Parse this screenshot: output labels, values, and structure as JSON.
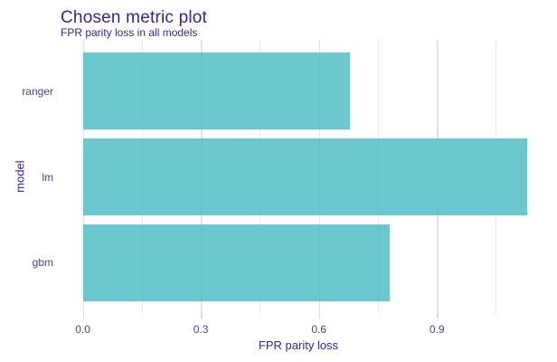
{
  "figure": {
    "title": "Chosen metric plot",
    "subtitle": "FPR parity loss in all models"
  },
  "chart_data": {
    "type": "bar",
    "orientation": "horizontal",
    "title": "Chosen metric plot",
    "subtitle": "FPR parity loss in all models",
    "xlabel": "FPR parity loss",
    "ylabel": "model",
    "categories": [
      "ranger",
      "lm",
      "gbm"
    ],
    "values": [
      0.68,
      1.13,
      0.78
    ],
    "xlim": [
      -0.0565,
      1.1845
    ],
    "x_major_ticks": [
      0.0,
      0.3,
      0.6,
      0.9
    ],
    "x_tick_labels": [
      "0.0",
      "0.3",
      "0.6",
      "0.9"
    ],
    "x_minor_ticks": [
      0.15,
      0.45,
      0.75,
      1.05
    ],
    "grid": "vertical major and minor gridlines, no horizontal",
    "legend": "none",
    "bar_color": "#46bac2",
    "bar_opacity": 0.8,
    "text_color": "#371ea3",
    "gridline_major_color": "#e3e3e3",
    "gridline_minor_color": "#ececec",
    "background_color": "#ffffff"
  }
}
